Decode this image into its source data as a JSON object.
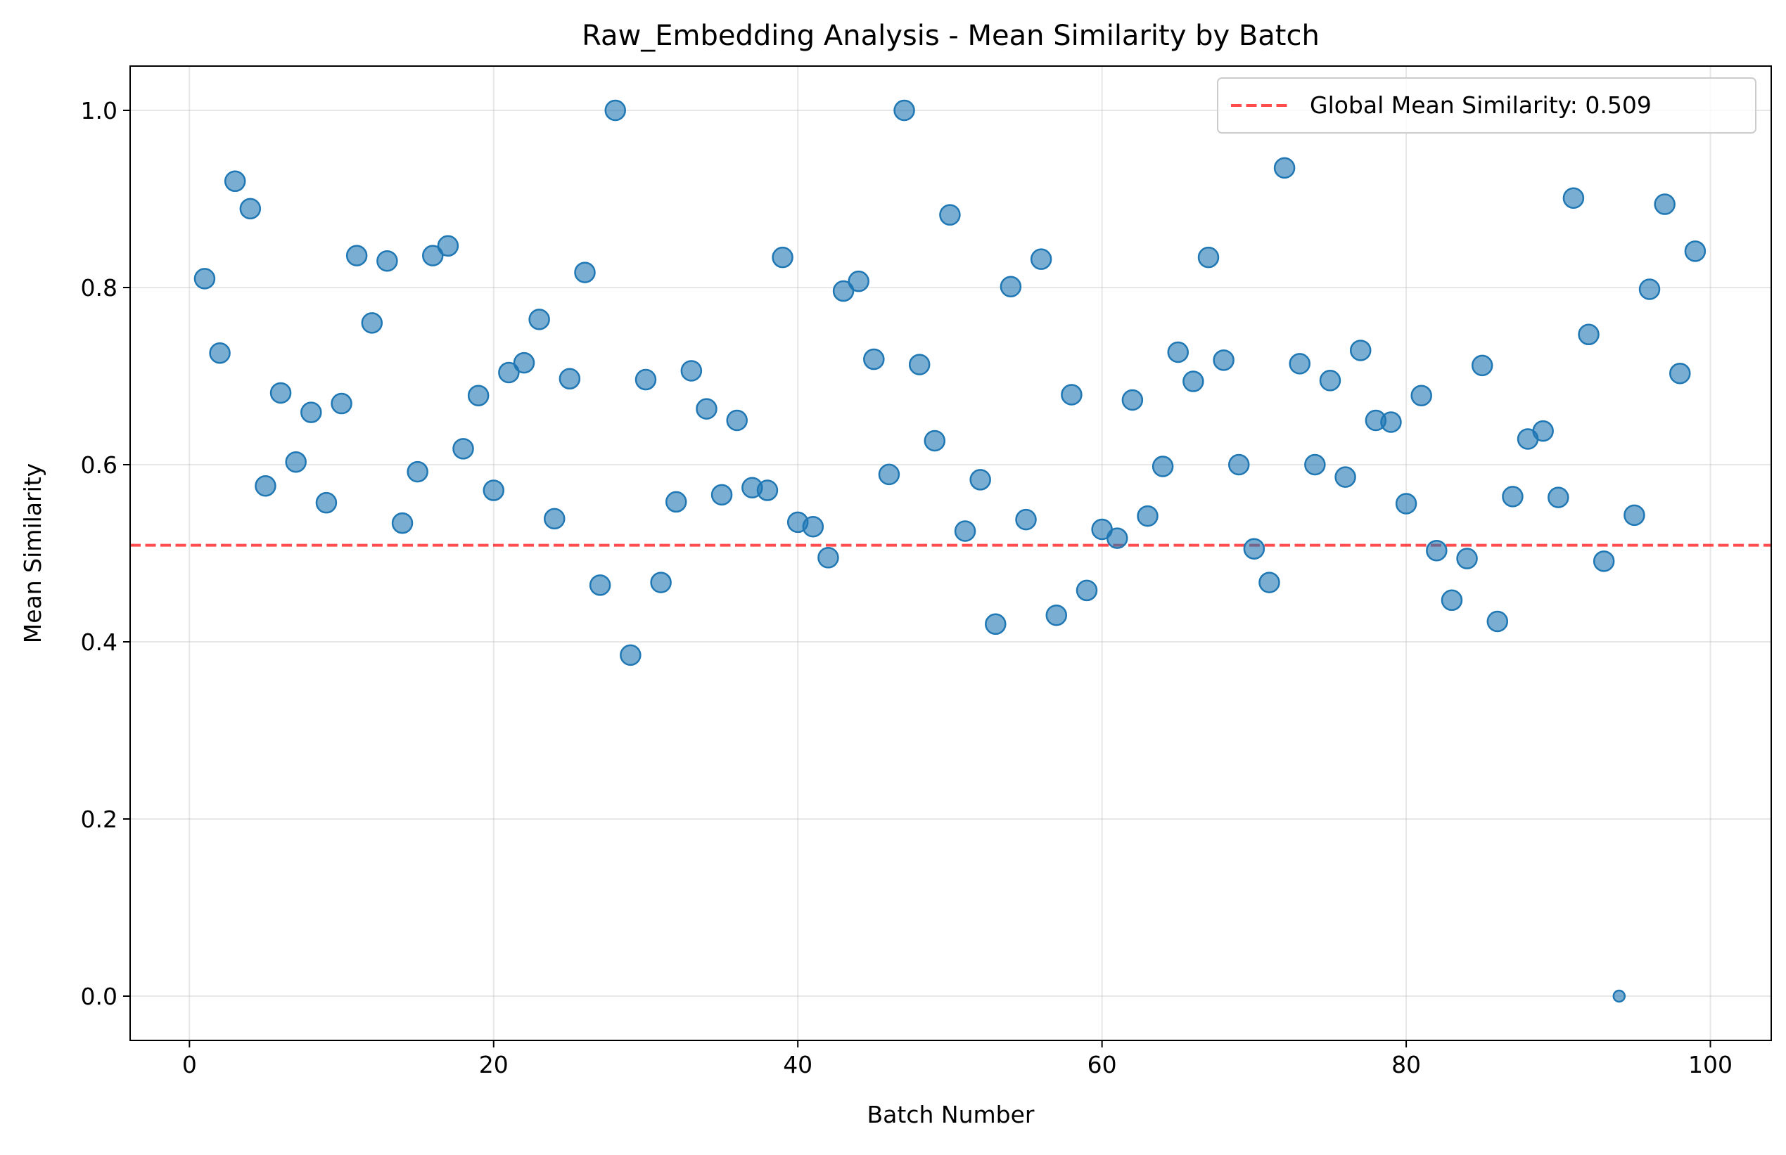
{
  "chart_data": {
    "type": "scatter",
    "title": "Raw_Embedding Analysis - Mean Similarity by Batch",
    "xlabel": "Batch Number",
    "ylabel": "Mean Similarity",
    "xlim": [
      -3.9,
      104.0
    ],
    "ylim": [
      -0.05,
      1.05
    ],
    "xticks": [
      0,
      20,
      40,
      60,
      80,
      100
    ],
    "yticks": [
      0.0,
      0.2,
      0.4,
      0.6,
      0.8,
      1.0
    ],
    "xtick_labels": [
      "0",
      "20",
      "40",
      "60",
      "80",
      "100"
    ],
    "ytick_labels": [
      "0.0",
      "0.2",
      "0.4",
      "0.6",
      "0.8",
      "1.0"
    ],
    "grid": true,
    "legend_position": "top-right",
    "point_color": "#1f77b4",
    "reference_line": {
      "label": "Global Mean Similarity: 0.509",
      "value": 0.509,
      "color": "#ff0000",
      "style": "dashed"
    },
    "points": [
      {
        "x": 1,
        "y": 0.81
      },
      {
        "x": 2,
        "y": 0.726
      },
      {
        "x": 3,
        "y": 0.92
      },
      {
        "x": 4,
        "y": 0.889
      },
      {
        "x": 5,
        "y": 0.576
      },
      {
        "x": 6,
        "y": 0.681
      },
      {
        "x": 7,
        "y": 0.603
      },
      {
        "x": 8,
        "y": 0.659
      },
      {
        "x": 9,
        "y": 0.557
      },
      {
        "x": 10,
        "y": 0.669
      },
      {
        "x": 11,
        "y": 0.836
      },
      {
        "x": 12,
        "y": 0.76
      },
      {
        "x": 13,
        "y": 0.83
      },
      {
        "x": 14,
        "y": 0.534
      },
      {
        "x": 15,
        "y": 0.592
      },
      {
        "x": 16,
        "y": 0.836
      },
      {
        "x": 17,
        "y": 0.847
      },
      {
        "x": 18,
        "y": 0.618
      },
      {
        "x": 19,
        "y": 0.678
      },
      {
        "x": 20,
        "y": 0.571
      },
      {
        "x": 21,
        "y": 0.704
      },
      {
        "x": 22,
        "y": 0.715
      },
      {
        "x": 23,
        "y": 0.764
      },
      {
        "x": 24,
        "y": 0.539
      },
      {
        "x": 25,
        "y": 0.697
      },
      {
        "x": 26,
        "y": 0.817
      },
      {
        "x": 27,
        "y": 0.464
      },
      {
        "x": 28,
        "y": 1.0
      },
      {
        "x": 29,
        "y": 0.385
      },
      {
        "x": 30,
        "y": 0.696
      },
      {
        "x": 31,
        "y": 0.467
      },
      {
        "x": 32,
        "y": 0.558
      },
      {
        "x": 33,
        "y": 0.706
      },
      {
        "x": 34,
        "y": 0.663
      },
      {
        "x": 35,
        "y": 0.566
      },
      {
        "x": 36,
        "y": 0.65
      },
      {
        "x": 37,
        "y": 0.574
      },
      {
        "x": 38,
        "y": 0.571
      },
      {
        "x": 39,
        "y": 0.834
      },
      {
        "x": 40,
        "y": 0.535
      },
      {
        "x": 41,
        "y": 0.53
      },
      {
        "x": 42,
        "y": 0.495
      },
      {
        "x": 43,
        "y": 0.796
      },
      {
        "x": 44,
        "y": 0.807
      },
      {
        "x": 45,
        "y": 0.719
      },
      {
        "x": 46,
        "y": 0.589
      },
      {
        "x": 47,
        "y": 1.0
      },
      {
        "x": 48,
        "y": 0.713
      },
      {
        "x": 49,
        "y": 0.627
      },
      {
        "x": 50,
        "y": 0.882
      },
      {
        "x": 51,
        "y": 0.525
      },
      {
        "x": 52,
        "y": 0.583
      },
      {
        "x": 53,
        "y": 0.42
      },
      {
        "x": 54,
        "y": 0.801
      },
      {
        "x": 55,
        "y": 0.538
      },
      {
        "x": 56,
        "y": 0.832
      },
      {
        "x": 57,
        "y": 0.43
      },
      {
        "x": 58,
        "y": 0.679
      },
      {
        "x": 59,
        "y": 0.458
      },
      {
        "x": 60,
        "y": 0.527
      },
      {
        "x": 61,
        "y": 0.517
      },
      {
        "x": 62,
        "y": 0.673
      },
      {
        "x": 63,
        "y": 0.542
      },
      {
        "x": 64,
        "y": 0.598
      },
      {
        "x": 65,
        "y": 0.727
      },
      {
        "x": 66,
        "y": 0.694
      },
      {
        "x": 67,
        "y": 0.834
      },
      {
        "x": 68,
        "y": 0.718
      },
      {
        "x": 69,
        "y": 0.6
      },
      {
        "x": 70,
        "y": 0.505
      },
      {
        "x": 71,
        "y": 0.467
      },
      {
        "x": 72,
        "y": 0.935
      },
      {
        "x": 73,
        "y": 0.714
      },
      {
        "x": 74,
        "y": 0.6
      },
      {
        "x": 75,
        "y": 0.695
      },
      {
        "x": 76,
        "y": 0.586
      },
      {
        "x": 77,
        "y": 0.729
      },
      {
        "x": 78,
        "y": 0.65
      },
      {
        "x": 79,
        "y": 0.648
      },
      {
        "x": 80,
        "y": 0.556
      },
      {
        "x": 81,
        "y": 0.678
      },
      {
        "x": 82,
        "y": 0.503
      },
      {
        "x": 83,
        "y": 0.447
      },
      {
        "x": 84,
        "y": 0.494
      },
      {
        "x": 85,
        "y": 0.712
      },
      {
        "x": 86,
        "y": 0.423
      },
      {
        "x": 87,
        "y": 0.564
      },
      {
        "x": 88,
        "y": 0.629
      },
      {
        "x": 89,
        "y": 0.638
      },
      {
        "x": 90,
        "y": 0.563
      },
      {
        "x": 91,
        "y": 0.901
      },
      {
        "x": 92,
        "y": 0.747
      },
      {
        "x": 93,
        "y": 0.491
      },
      {
        "x": 94,
        "y": 0.0
      },
      {
        "x": 95,
        "y": 0.543
      },
      {
        "x": 96,
        "y": 0.798
      },
      {
        "x": 97,
        "y": 0.894
      },
      {
        "x": 98,
        "y": 0.703
      },
      {
        "x": 99,
        "y": 0.841
      }
    ]
  }
}
